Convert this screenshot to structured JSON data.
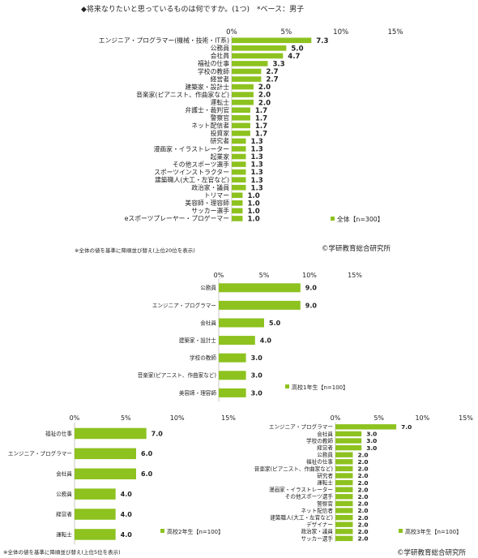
{
  "header": {
    "title": "◆将来なりたいと思っているものは何ですか。(1つ)　*ベース：男子"
  },
  "footer": {
    "note_top": "※全体の値を基準に降順並び替え(上位20位を表示)",
    "note_bottom": "※全体の値を基準に降順並び替え(上位5位を表示)",
    "credit": "©学研教育総合研究所"
  },
  "colors": {
    "bar": "#8dc21f",
    "axis": "#c8c8c8",
    "text": "#222222"
  },
  "chart_data": [
    {
      "type": "bar",
      "orientation": "horizontal",
      "xlim": [
        0,
        15
      ],
      "ticks": [
        "0%",
        "5%",
        "10%",
        "15%"
      ],
      "legend": "全体【n=300】",
      "categories": [
        "エンジニア・プログラマー(機械・技術・IT系)",
        "公務員",
        "会社員",
        "福祉の仕事",
        "学校の教師",
        "経営者",
        "建築家・設計士",
        "音楽家(ピアニスト、作曲家など)",
        "運転士",
        "弁護士・裁判官",
        "警察官",
        "ネット配信者",
        "投資家",
        "研究者",
        "漫画家・イラストレーター",
        "起業家",
        "その他スポーツ選手",
        "スポーツインストラクター",
        "建築職人(大工・左官など)",
        "政治家・議員",
        "トリマー",
        "美容師・理容師",
        "サッカー選手",
        "eスポーツプレーヤー・プロゲーマー"
      ],
      "values": [
        7.3,
        5.0,
        4.7,
        3.3,
        2.7,
        2.7,
        2.0,
        2.0,
        2.0,
        1.7,
        1.7,
        1.7,
        1.7,
        1.3,
        1.3,
        1.3,
        1.3,
        1.3,
        1.3,
        1.3,
        1.0,
        1.0,
        1.0,
        1.0
      ]
    },
    {
      "type": "bar",
      "orientation": "horizontal",
      "xlim": [
        0,
        15
      ],
      "ticks": [
        "0%",
        "5%",
        "10%",
        "15%"
      ],
      "legend": "高校1年生【n=100】",
      "categories": [
        "公務員",
        "エンジニア・プログラマー",
        "会社員",
        "建築家・設計士",
        "学校の教師",
        "音楽家(ピアニスト、作曲家など)",
        "美容師・理容師"
      ],
      "values": [
        9.0,
        9.0,
        5.0,
        4.0,
        3.0,
        3.0,
        3.0
      ]
    },
    {
      "type": "bar",
      "orientation": "horizontal",
      "xlim": [
        0,
        15
      ],
      "ticks": [
        "0%",
        "5%",
        "10%",
        "15%"
      ],
      "legend": "高校2年生【n=100】",
      "categories": [
        "福祉の仕事",
        "エンジニア・プログラマー",
        "会社員",
        "公務員",
        "経営者",
        "運転士"
      ],
      "values": [
        7.0,
        6.0,
        6.0,
        4.0,
        4.0,
        4.0
      ]
    },
    {
      "type": "bar",
      "orientation": "horizontal",
      "xlim": [
        0,
        15
      ],
      "ticks": [
        "0%",
        "5%",
        "10%",
        "15%"
      ],
      "legend": "高校3年生【n=100】",
      "categories": [
        "エンジニア・プログラマー",
        "会社員",
        "学校の教師",
        "経営者",
        "公務員",
        "福祉の仕事",
        "音楽家(ピアニスト、作曲家など)",
        "研究者",
        "運転士",
        "漫画家・イラストレーター",
        "その他スポーツ選手",
        "警察官",
        "ネット配信者",
        "建築職人(大工・左官など)",
        "デザイナー",
        "政治家・議員",
        "サッカー選手"
      ],
      "values": [
        7.0,
        3.0,
        3.0,
        3.0,
        2.0,
        2.0,
        2.0,
        2.0,
        2.0,
        2.0,
        2.0,
        2.0,
        2.0,
        2.0,
        2.0,
        2.0,
        2.0
      ]
    }
  ]
}
